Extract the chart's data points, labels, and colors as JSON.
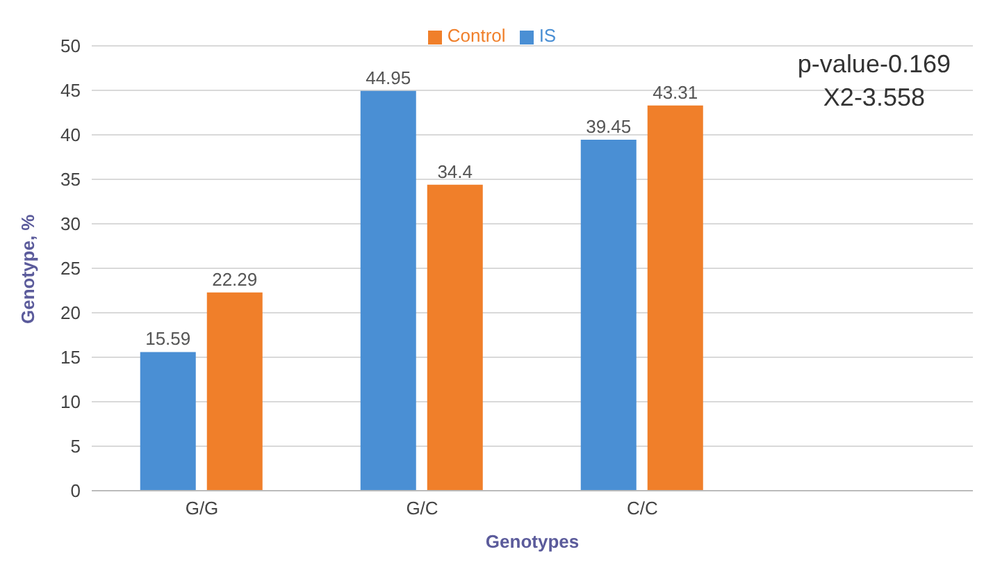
{
  "chart_data": {
    "type": "bar",
    "xlabel": "Genotypes",
    "ylabel": "Genotype, %",
    "categories": [
      "G/G",
      "G/C",
      "C/C",
      null
    ],
    "series": [
      {
        "name": "IS",
        "color": "#4a8fd4",
        "values": [
          15.59,
          44.95,
          39.45,
          null
        ]
      },
      {
        "name": "Control",
        "color": "#f07f2a",
        "values": [
          22.29,
          34.4,
          43.31,
          null
        ]
      }
    ],
    "ylim": [
      0,
      50
    ],
    "yticks": [
      0,
      5,
      10,
      15,
      20,
      25,
      30,
      35,
      40,
      45,
      50
    ],
    "grid": "y",
    "legend": "top",
    "data_labels": true,
    "annotations": [
      "p-value-0.169",
      "X2-3.558"
    ]
  }
}
